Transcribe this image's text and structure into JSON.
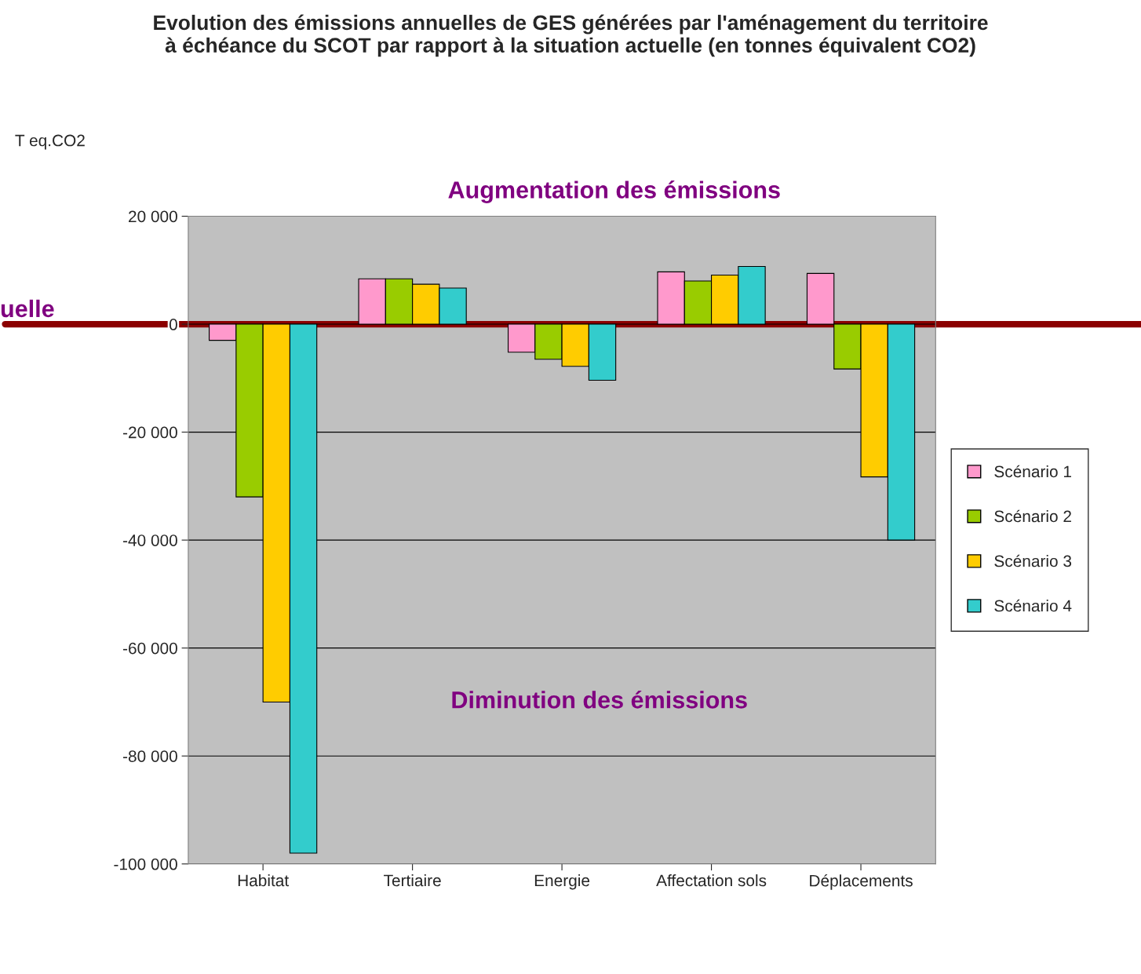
{
  "chart_data": {
    "type": "bar",
    "title": "Evolution des émissions annuelles de GES générées par l'aménagement du territoire\nà échéance du SCOT par rapport à la situation actuelle (en tonnes équivalent CO2)",
    "ylabel": "T eq.CO2",
    "categories": [
      "Habitat",
      "Tertiaire",
      "Energie",
      "Affectation sols",
      "Déplacements"
    ],
    "series": [
      {
        "name": "Scénario 1",
        "color": "#ff99cc",
        "values": [
          -3000,
          8400,
          -5200,
          9700,
          9400
        ]
      },
      {
        "name": "Scénario 2",
        "color": "#99cc00",
        "values": [
          -32000,
          8400,
          -6500,
          8000,
          -8300
        ]
      },
      {
        "name": "Scénario 3",
        "color": "#ffcc00",
        "values": [
          -70000,
          7400,
          -7800,
          9100,
          -28300
        ]
      },
      {
        "name": "Scénario 4",
        "color": "#33cccc",
        "values": [
          -98000,
          6700,
          -10400,
          10700,
          -40000
        ]
      }
    ],
    "ylim": [
      -100000,
      20000
    ],
    "yticks": [
      {
        "value": -100000,
        "label": "-100 000"
      },
      {
        "value": -80000,
        "label": "-80 000"
      },
      {
        "value": -60000,
        "label": "-60 000"
      },
      {
        "value": -40000,
        "label": "-40 000"
      },
      {
        "value": -20000,
        "label": "-20 000"
      },
      0,
      {
        "value": 20000,
        "label": "20 000"
      }
    ],
    "grid": "y",
    "legend": "right",
    "ref_lines": [
      {
        "axis": "y",
        "value": 0,
        "label": "uelle",
        "color": "#8b0000"
      }
    ],
    "annotations": [
      "Augmentation des émissions",
      "Diminution des émissions"
    ]
  }
}
